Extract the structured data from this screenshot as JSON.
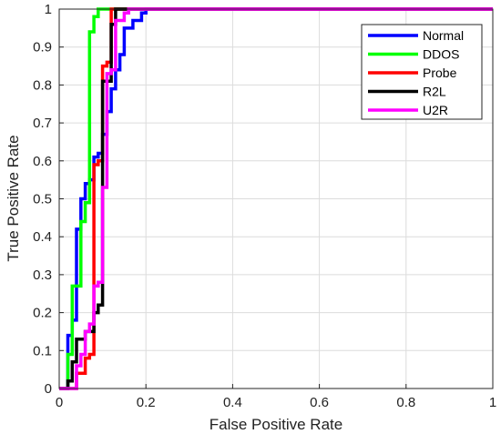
{
  "chart_data": {
    "type": "line",
    "title": "",
    "xlabel": "False Positive Rate",
    "ylabel": "True Positive Rate",
    "xlim": [
      0,
      1
    ],
    "ylim": [
      0,
      1
    ],
    "xticks": [
      0,
      0.2,
      0.4,
      0.6,
      0.8,
      1
    ],
    "xtick_labels": [
      "0",
      "0.2",
      "0.4",
      "0.6",
      "0.8",
      "1"
    ],
    "yticks": [
      0,
      0.1,
      0.2,
      0.3,
      0.4,
      0.5,
      0.6,
      0.7,
      0.8,
      0.9,
      1
    ],
    "ytick_labels": [
      "0",
      "0.1",
      "0.2",
      "0.3",
      "0.4",
      "0.5",
      "0.6",
      "0.7",
      "0.8",
      "0.9",
      "1"
    ],
    "grid": true,
    "legend_position": "top-right",
    "series": [
      {
        "name": "Normal",
        "color": "#0000ff",
        "points": [
          [
            0,
            0
          ],
          [
            0.02,
            0
          ],
          [
            0.02,
            0.14
          ],
          [
            0.03,
            0.14
          ],
          [
            0.03,
            0.18
          ],
          [
            0.04,
            0.18
          ],
          [
            0.04,
            0.42
          ],
          [
            0.05,
            0.42
          ],
          [
            0.05,
            0.5
          ],
          [
            0.06,
            0.5
          ],
          [
            0.06,
            0.54
          ],
          [
            0.07,
            0.54
          ],
          [
            0.07,
            0.55
          ],
          [
            0.08,
            0.55
          ],
          [
            0.08,
            0.61
          ],
          [
            0.09,
            0.61
          ],
          [
            0.09,
            0.62
          ],
          [
            0.1,
            0.62
          ],
          [
            0.1,
            0.67
          ],
          [
            0.11,
            0.67
          ],
          [
            0.11,
            0.73
          ],
          [
            0.12,
            0.73
          ],
          [
            0.12,
            0.79
          ],
          [
            0.13,
            0.79
          ],
          [
            0.13,
            0.84
          ],
          [
            0.14,
            0.84
          ],
          [
            0.14,
            0.88
          ],
          [
            0.15,
            0.88
          ],
          [
            0.15,
            0.95
          ],
          [
            0.17,
            0.95
          ],
          [
            0.17,
            0.97
          ],
          [
            0.19,
            0.97
          ],
          [
            0.19,
            0.99
          ],
          [
            0.2,
            0.99
          ],
          [
            0.2,
            1
          ],
          [
            1,
            1
          ]
        ]
      },
      {
        "name": "DDOS",
        "color": "#00ff00",
        "points": [
          [
            0,
            0
          ],
          [
            0.02,
            0
          ],
          [
            0.02,
            0.09
          ],
          [
            0.03,
            0.09
          ],
          [
            0.03,
            0.27
          ],
          [
            0.05,
            0.27
          ],
          [
            0.05,
            0.44
          ],
          [
            0.06,
            0.44
          ],
          [
            0.06,
            0.49
          ],
          [
            0.07,
            0.49
          ],
          [
            0.07,
            0.94
          ],
          [
            0.08,
            0.94
          ],
          [
            0.08,
            0.98
          ],
          [
            0.09,
            0.98
          ],
          [
            0.09,
            1
          ],
          [
            1,
            1
          ]
        ]
      },
      {
        "name": "Probe",
        "color": "#ff0000",
        "points": [
          [
            0,
            0
          ],
          [
            0.04,
            0
          ],
          [
            0.04,
            0.04
          ],
          [
            0.06,
            0.04
          ],
          [
            0.06,
            0.08
          ],
          [
            0.07,
            0.08
          ],
          [
            0.07,
            0.09
          ],
          [
            0.08,
            0.09
          ],
          [
            0.08,
            0.59
          ],
          [
            0.09,
            0.59
          ],
          [
            0.09,
            0.6
          ],
          [
            0.1,
            0.6
          ],
          [
            0.1,
            0.85
          ],
          [
            0.11,
            0.85
          ],
          [
            0.11,
            0.86
          ],
          [
            0.12,
            0.86
          ],
          [
            0.12,
            1
          ],
          [
            1,
            1
          ]
        ]
      },
      {
        "name": "R2L",
        "color": "#000000",
        "points": [
          [
            0,
            0
          ],
          [
            0.02,
            0
          ],
          [
            0.02,
            0.02
          ],
          [
            0.03,
            0.02
          ],
          [
            0.03,
            0.07
          ],
          [
            0.04,
            0.07
          ],
          [
            0.04,
            0.13
          ],
          [
            0.06,
            0.13
          ],
          [
            0.06,
            0.15
          ],
          [
            0.08,
            0.15
          ],
          [
            0.08,
            0.2
          ],
          [
            0.09,
            0.2
          ],
          [
            0.09,
            0.22
          ],
          [
            0.1,
            0.22
          ],
          [
            0.1,
            0.81
          ],
          [
            0.12,
            0.81
          ],
          [
            0.12,
            0.96
          ],
          [
            0.13,
            0.96
          ],
          [
            0.13,
            1
          ],
          [
            1,
            1
          ]
        ]
      },
      {
        "name": "U2R",
        "color": "#ff00ff",
        "points": [
          [
            0,
            0
          ],
          [
            0.04,
            0
          ],
          [
            0.04,
            0.06
          ],
          [
            0.05,
            0.06
          ],
          [
            0.05,
            0.09
          ],
          [
            0.06,
            0.09
          ],
          [
            0.06,
            0.15
          ],
          [
            0.07,
            0.15
          ],
          [
            0.07,
            0.17
          ],
          [
            0.08,
            0.17
          ],
          [
            0.08,
            0.27
          ],
          [
            0.09,
            0.27
          ],
          [
            0.09,
            0.28
          ],
          [
            0.1,
            0.28
          ],
          [
            0.1,
            0.53
          ],
          [
            0.11,
            0.53
          ],
          [
            0.11,
            0.83
          ],
          [
            0.12,
            0.83
          ],
          [
            0.12,
            0.84
          ],
          [
            0.13,
            0.84
          ],
          [
            0.13,
            0.97
          ],
          [
            0.15,
            0.97
          ],
          [
            0.15,
            0.99
          ],
          [
            0.16,
            0.99
          ],
          [
            0.16,
            1
          ],
          [
            1,
            1
          ]
        ]
      }
    ]
  }
}
